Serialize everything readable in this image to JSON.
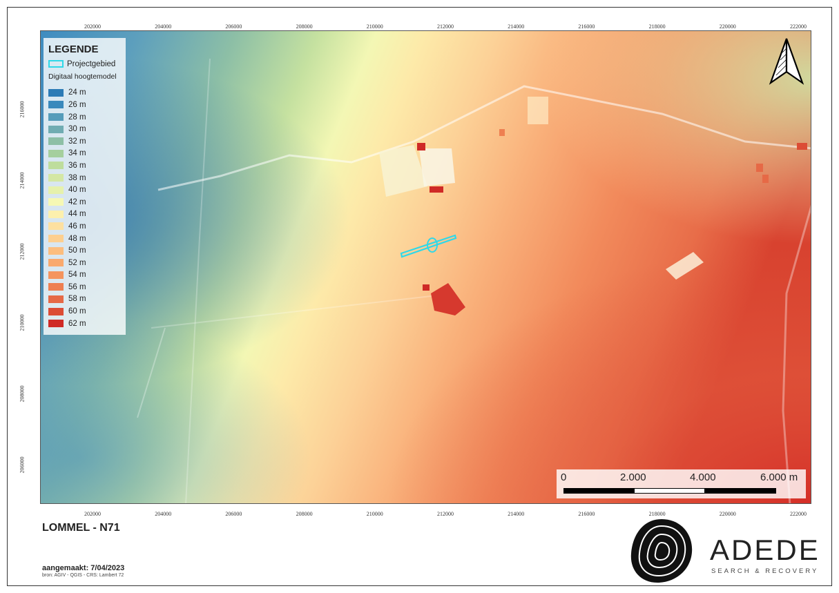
{
  "map_title": "LOMMEL - N71",
  "created": "aangemaakt: 7/04/2023",
  "source": "bron: AGIV - QGIS - CRS: Lambert 72",
  "legend": {
    "title": "LEGENDE",
    "project_label": "Projectgebied",
    "dhm_label": "Digitaal hoogtemodel",
    "project_color": "#2fd8e8",
    "classes": [
      {
        "label": "24 m",
        "color": "#2c7bb6"
      },
      {
        "label": "26 m",
        "color": "#3a89bc"
      },
      {
        "label": "28 m",
        "color": "#559cba"
      },
      {
        "label": "30 m",
        "color": "#70acb2"
      },
      {
        "label": "32 m",
        "color": "#8dbfa6"
      },
      {
        "label": "34 m",
        "color": "#a5cf9d"
      },
      {
        "label": "36 m",
        "color": "#bedd9c"
      },
      {
        "label": "38 m",
        "color": "#d4e7a4"
      },
      {
        "label": "40 m",
        "color": "#e6f1ac"
      },
      {
        "label": "42 m",
        "color": "#f6f8b4"
      },
      {
        "label": "44 m",
        "color": "#fcf0ad"
      },
      {
        "label": "46 m",
        "color": "#fde0a0"
      },
      {
        "label": "48 m",
        "color": "#fdcf8f"
      },
      {
        "label": "50 m",
        "color": "#fcbd7e"
      },
      {
        "label": "52 m",
        "color": "#f9a96e"
      },
      {
        "label": "54 m",
        "color": "#f5945e"
      },
      {
        "label": "56 m",
        "color": "#ee7f51"
      },
      {
        "label": "58 m",
        "color": "#e66946"
      },
      {
        "label": "60 m",
        "color": "#dc4c35"
      },
      {
        "label": "62 m",
        "color": "#cf2a26"
      }
    ]
  },
  "axis": {
    "x_ticks": [
      "202000",
      "204000",
      "206000",
      "208000",
      "210000",
      "212000",
      "214000",
      "216000",
      "218000",
      "220000",
      "222000"
    ],
    "y_ticks": [
      "216000",
      "214000",
      "212000",
      "210000",
      "208000",
      "206000"
    ]
  },
  "scalebar": {
    "labels": [
      "0",
      "2.000",
      "4.000",
      "6.000 m"
    ]
  },
  "brand": {
    "name": "ADEDE",
    "tagline": "SEARCH & RECOVERY"
  }
}
